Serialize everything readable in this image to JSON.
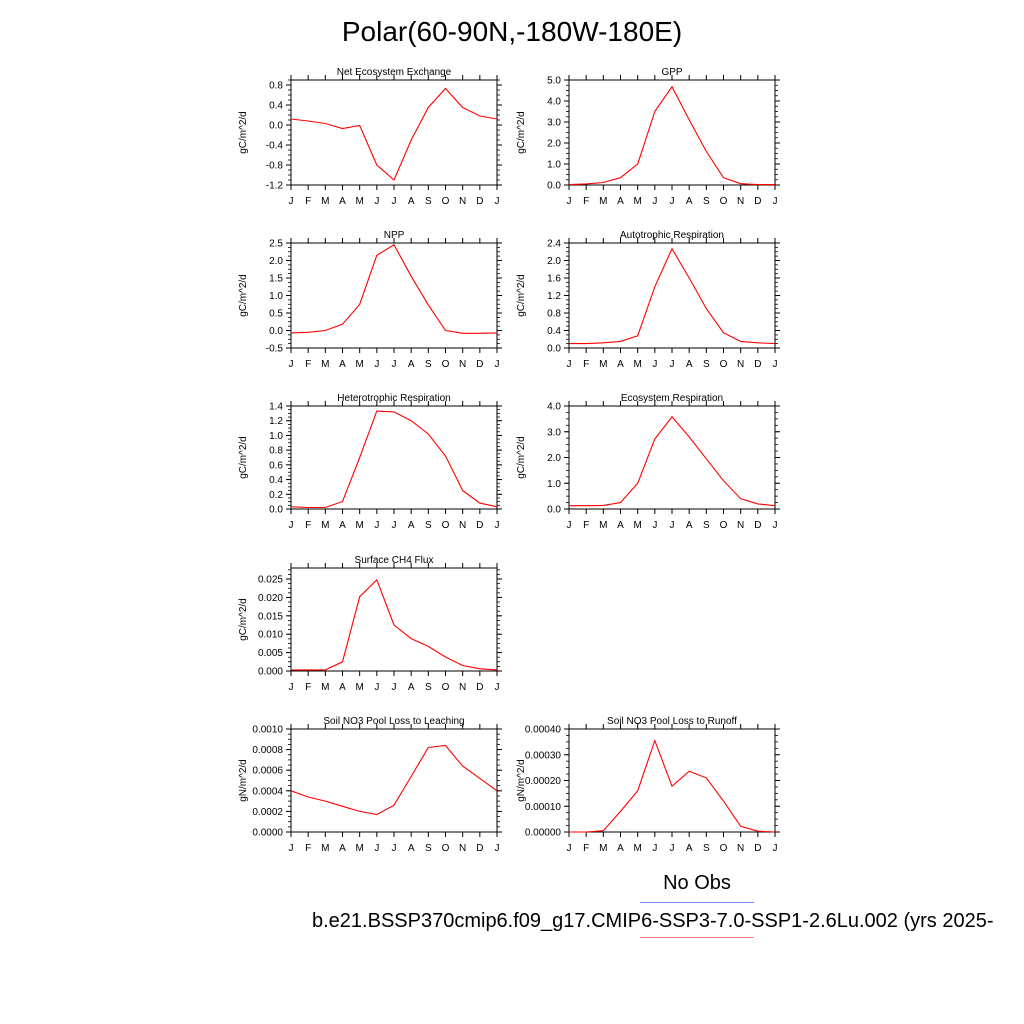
{
  "figure": {
    "title": "Polar(60-90N,-180W-180E)",
    "legend_obs": "No Obs",
    "legend_case": "b.e21.BSSP370cmip6.f09_g17.CMIP6-SSP3-7.0-SSP1-2.6Lu.002 (yrs 2025-",
    "line_color": "#ff0000",
    "obs_color": "#8080ff"
  },
  "chart_data": [
    {
      "type": "line",
      "title": "Net Ecosystem Exchange",
      "ylabel": "gC/m^2/d",
      "categories": [
        "J",
        "F",
        "M",
        "A",
        "M",
        "J",
        "J",
        "A",
        "S",
        "O",
        "N",
        "D",
        "J"
      ],
      "values": [
        0.12,
        0.08,
        0.03,
        -0.07,
        -0.01,
        -0.8,
        -1.1,
        -0.3,
        0.35,
        0.73,
        0.35,
        0.18,
        0.12
      ],
      "ylim": [
        -1.2,
        0.9
      ],
      "yticks": [
        "0.8",
        "0.4",
        "0.0",
        "-0.4",
        "-0.8",
        "-1.2"
      ],
      "ytick_values": [
        0.8,
        0.4,
        0.0,
        -0.4,
        -0.8,
        -1.2
      ]
    },
    {
      "type": "line",
      "title": "GPP",
      "ylabel": "gC/m^2/d",
      "categories": [
        "J",
        "F",
        "M",
        "A",
        "M",
        "J",
        "J",
        "A",
        "S",
        "O",
        "N",
        "D",
        "J"
      ],
      "values": [
        0.02,
        0.05,
        0.12,
        0.35,
        1.0,
        3.5,
        4.68,
        3.1,
        1.6,
        0.35,
        0.06,
        0.02,
        0.02
      ],
      "ylim": [
        0.0,
        5.0
      ],
      "yticks": [
        "5.0",
        "4.0",
        "3.0",
        "2.0",
        "1.0",
        "0.0"
      ],
      "ytick_values": [
        5.0,
        4.0,
        3.0,
        2.0,
        1.0,
        0.0
      ]
    },
    {
      "type": "line",
      "title": "NPP",
      "ylabel": "gC/m^2/d",
      "categories": [
        "J",
        "F",
        "M",
        "A",
        "M",
        "J",
        "J",
        "A",
        "S",
        "O",
        "N",
        "D",
        "J"
      ],
      "values": [
        -0.07,
        -0.05,
        0.0,
        0.18,
        0.75,
        2.15,
        2.45,
        1.55,
        0.73,
        0.0,
        -0.08,
        -0.08,
        -0.07
      ],
      "ylim": [
        -0.5,
        2.5
      ],
      "yticks": [
        "2.5",
        "2.0",
        "1.5",
        "1.0",
        "0.5",
        "0.0",
        "-0.5"
      ],
      "ytick_values": [
        2.5,
        2.0,
        1.5,
        1.0,
        0.5,
        0.0,
        -0.5
      ]
    },
    {
      "type": "line",
      "title": "Autotrophic Respiration",
      "ylabel": "gC/m^2/d",
      "categories": [
        "J",
        "F",
        "M",
        "A",
        "M",
        "J",
        "J",
        "A",
        "S",
        "O",
        "N",
        "D",
        "J"
      ],
      "values": [
        0.1,
        0.1,
        0.12,
        0.15,
        0.28,
        1.4,
        2.27,
        1.6,
        0.9,
        0.35,
        0.15,
        0.12,
        0.1
      ],
      "ylim": [
        0.0,
        2.4
      ],
      "yticks": [
        "2.4",
        "2.0",
        "1.6",
        "1.2",
        "0.8",
        "0.4",
        "0.0"
      ],
      "ytick_values": [
        2.4,
        2.0,
        1.6,
        1.2,
        0.8,
        0.4,
        0.0
      ]
    },
    {
      "type": "line",
      "title": "Heterotrophic Respiration",
      "ylabel": "gC/m^2/d",
      "categories": [
        "J",
        "F",
        "M",
        "A",
        "M",
        "J",
        "J",
        "A",
        "S",
        "O",
        "N",
        "D",
        "J"
      ],
      "values": [
        0.03,
        0.02,
        0.02,
        0.1,
        0.7,
        1.33,
        1.32,
        1.2,
        1.02,
        0.72,
        0.25,
        0.08,
        0.03
      ],
      "ylim": [
        0.0,
        1.4
      ],
      "yticks": [
        "1.4",
        "1.2",
        "1.0",
        "0.8",
        "0.6",
        "0.4",
        "0.2",
        "0.0"
      ],
      "ytick_values": [
        1.4,
        1.2,
        1.0,
        0.8,
        0.6,
        0.4,
        0.2,
        0.0
      ]
    },
    {
      "type": "line",
      "title": "Ecosystem Respiration",
      "ylabel": "gC/m^2/d",
      "categories": [
        "J",
        "F",
        "M",
        "A",
        "M",
        "J",
        "J",
        "A",
        "S",
        "O",
        "N",
        "D",
        "J"
      ],
      "values": [
        0.13,
        0.13,
        0.14,
        0.25,
        1.0,
        2.72,
        3.58,
        2.8,
        1.95,
        1.1,
        0.4,
        0.2,
        0.13
      ],
      "ylim": [
        0.0,
        4.0
      ],
      "yticks": [
        "4.0",
        "3.0",
        "2.0",
        "1.0",
        "0.0"
      ],
      "ytick_values": [
        4.0,
        3.0,
        2.0,
        1.0,
        0.0
      ]
    },
    {
      "type": "line",
      "title": "Surface CH4 Flux",
      "ylabel": "gC/m^2/d",
      "categories": [
        "J",
        "F",
        "M",
        "A",
        "M",
        "J",
        "J",
        "A",
        "S",
        "O",
        "N",
        "D",
        "J"
      ],
      "values": [
        0.0003,
        0.0003,
        0.0003,
        0.0025,
        0.0202,
        0.0248,
        0.0125,
        0.0088,
        0.0067,
        0.0038,
        0.0015,
        0.0006,
        0.0003
      ],
      "ylim": [
        0.0,
        0.028
      ],
      "yticks": [
        "0.025",
        "0.020",
        "0.015",
        "0.010",
        "0.005",
        "0.000"
      ],
      "ytick_values": [
        0.025,
        0.02,
        0.015,
        0.01,
        0.005,
        0.0
      ]
    },
    {
      "type": "line",
      "title": "Soil NO3 Pool Loss to Leaching",
      "ylabel": "gN/m^2/d",
      "categories": [
        "J",
        "F",
        "M",
        "A",
        "M",
        "J",
        "J",
        "A",
        "S",
        "O",
        "N",
        "D",
        "J"
      ],
      "values": [
        0.0004,
        0.00034,
        0.0003,
        0.00025,
        0.0002,
        0.00017,
        0.00026,
        0.00054,
        0.00082,
        0.00084,
        0.00064,
        0.00052,
        0.0004
      ],
      "ylim": [
        0.0,
        0.001
      ],
      "yticks": [
        "0.0010",
        "0.0008",
        "0.0006",
        "0.0004",
        "0.0002",
        "0.0000"
      ],
      "ytick_values": [
        0.001,
        0.0008,
        0.0006,
        0.0004,
        0.0002,
        0.0
      ]
    },
    {
      "type": "line",
      "title": "Soil NO3 Pool Loss to Runoff",
      "ylabel": "gN/m^2/d",
      "categories": [
        "J",
        "F",
        "M",
        "A",
        "M",
        "J",
        "J",
        "A",
        "S",
        "O",
        "N",
        "D",
        "J"
      ],
      "values": [
        0.0,
        0.0,
        5e-06,
        8e-05,
        0.00016,
        0.000355,
        0.000178,
        0.000236,
        0.00021,
        0.00012,
        2.2e-05,
        3e-06,
        0.0
      ],
      "ylim": [
        0.0,
        0.0004
      ],
      "yticks": [
        "0.00040",
        "0.00030",
        "0.00020",
        "0.00010",
        "0.00000"
      ],
      "ytick_values": [
        0.0004,
        0.0003,
        0.0002,
        0.0001,
        0.0
      ]
    }
  ]
}
